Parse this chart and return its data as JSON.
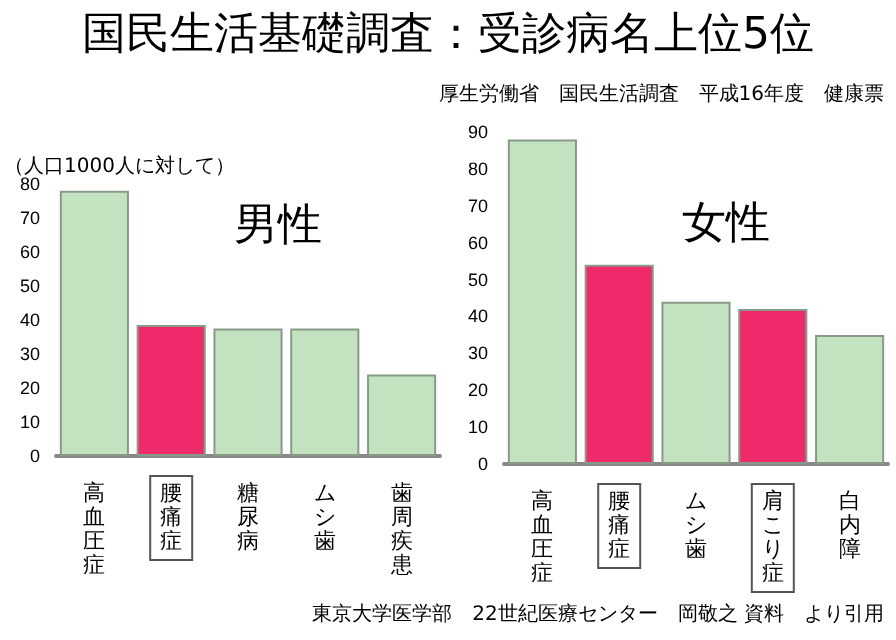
{
  "chart_data": [
    {
      "type": "bar",
      "title": "男性",
      "ylabel": "（人口1000人に対して）",
      "annotations": [
        "国民生活基礎調査：受診病名上位5位",
        "厚生労働省　国民生活調査　平成16年度　健康票"
      ],
      "categories": [
        "高血圧症",
        "腰痛症",
        "糖尿病",
        "ムシ歯",
        "歯周疾患"
      ],
      "values": [
        78,
        38.5,
        37.5,
        37.5,
        24
      ],
      "colors": [
        "#c3e2c0",
        "#ee2a6b",
        "#c3e2c0",
        "#c3e2c0",
        "#c3e2c0"
      ],
      "ylim": [
        0,
        80
      ],
      "yticks": [
        0,
        10,
        20,
        30,
        40,
        50,
        60,
        70,
        80
      ],
      "grid": false
    },
    {
      "type": "bar",
      "title": "女性",
      "annotations": [
        "東京大学医学部　22世紀医療センター　岡敬之 資料　より引用"
      ],
      "categories": [
        "高血圧症",
        "腰痛症",
        "ムシ歯",
        "肩こり症",
        "白内障"
      ],
      "values": [
        88,
        54,
        44,
        42,
        35
      ],
      "colors": [
        "#c3e2c0",
        "#ee2a6b",
        "#c3e2c0",
        "#ee2a6b",
        "#c3e2c0"
      ],
      "ylim": [
        0,
        90
      ],
      "yticks": [
        0,
        10,
        20,
        30,
        40,
        50,
        60,
        70,
        80,
        90
      ],
      "grid": false
    }
  ]
}
